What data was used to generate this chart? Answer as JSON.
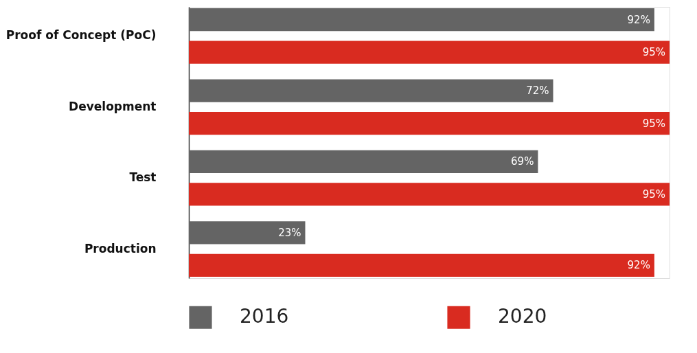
{
  "chart_data": {
    "type": "bar",
    "orientation": "horizontal",
    "categories": [
      "Proof of Concept (PoC)",
      "Development",
      "Test",
      "Production"
    ],
    "series": [
      {
        "name": "2016",
        "color": "#646464",
        "values": [
          92,
          72,
          69,
          23
        ],
        "value_labels": [
          "92%",
          "72%",
          "69%",
          "23%"
        ]
      },
      {
        "name": "2020",
        "color": "#d92b20",
        "values": [
          95,
          95,
          95,
          92
        ],
        "value_labels": [
          "95%",
          "95%",
          "95%",
          "92%"
        ]
      }
    ],
    "legend": "bottom"
  }
}
